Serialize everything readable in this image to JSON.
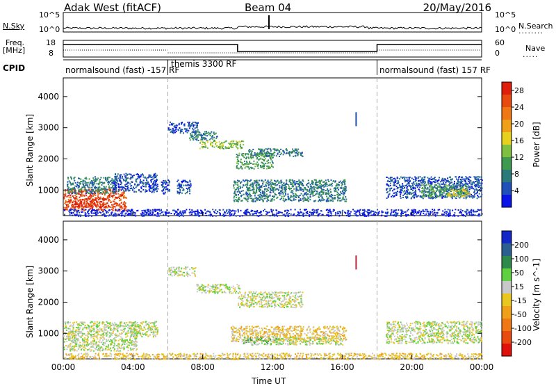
{
  "header": {
    "station": "Adak West (fitACF)",
    "beam": "Beam 04",
    "date": "20/May/2016"
  },
  "top_panels": {
    "nsky_label": "N.Sky",
    "nsearch_label": "N.Search",
    "nsky_ticks": [
      "10^5",
      "10^0"
    ],
    "nsearch_ticks": [
      "10^5",
      "10^0"
    ],
    "freq_label_line1": "Freq.",
    "freq_label_line2": "[MHz]",
    "freq_ticks": [
      "18",
      "8"
    ],
    "nave_label": "Nave",
    "nave_ticks": [
      "60",
      "0"
    ],
    "cpid_label": "CPID",
    "cpid_segments": [
      {
        "text": "normalsound (fast) -157 RF",
        "start_hour": 0,
        "end_hour": 6
      },
      {
        "text": "themis 3300 RF",
        "start_hour": 6,
        "end_hour": 18
      },
      {
        "text": "normalsound (fast) 157 RF",
        "start_hour": 18,
        "end_hour": 24
      }
    ]
  },
  "x_axis": {
    "label": "Time UT",
    "ticks": [
      "00:00",
      "04:00",
      "08:00",
      "12:00",
      "16:00",
      "20:00",
      "00:00"
    ]
  },
  "chart_data": [
    {
      "type": "heatmap",
      "name": "power",
      "ylabel": "Slant Range [km]",
      "ylim": [
        180,
        4600
      ],
      "yticks": [
        1000,
        2000,
        3000,
        4000
      ],
      "xlim": [
        0,
        24
      ],
      "colorbar": {
        "label": "Power [dB]",
        "ticks": [
          "4",
          "8",
          "12",
          "16",
          "20",
          "24",
          "28"
        ],
        "colors": [
          "#0a14e6",
          "#1f4fb8",
          "#2a7a7a",
          "#3e9a4e",
          "#7fc040",
          "#e6d21e",
          "#f0a018",
          "#f07814",
          "#e84a10",
          "#e01e0c"
        ]
      },
      "regions": [
        {
          "t0": 0.0,
          "t1": 3.6,
          "r0": 350,
          "r1": 1050,
          "level": 8
        },
        {
          "t0": 0.6,
          "t1": 2.6,
          "r0": 450,
          "r1": 750,
          "level": 9
        },
        {
          "t0": 0.2,
          "t1": 3.0,
          "r0": 900,
          "r1": 1450,
          "level": 2
        },
        {
          "t0": 2.8,
          "t1": 5.4,
          "r0": 950,
          "r1": 1550,
          "level": 1
        },
        {
          "t0": 5.6,
          "t1": 6.1,
          "r0": 900,
          "r1": 1350,
          "level": 1
        },
        {
          "t0": 6.0,
          "t1": 7.7,
          "r0": 2850,
          "r1": 3200,
          "level": 1
        },
        {
          "t0": 7.2,
          "t1": 8.8,
          "r0": 2600,
          "r1": 2900,
          "level": 2
        },
        {
          "t0": 7.8,
          "t1": 10.3,
          "r0": 2350,
          "r1": 2600,
          "level": 4
        },
        {
          "t0": 9.9,
          "t1": 12.0,
          "r0": 1700,
          "r1": 2200,
          "level": 3
        },
        {
          "t0": 10.6,
          "t1": 13.7,
          "r0": 2100,
          "r1": 2350,
          "level": 2
        },
        {
          "t0": 9.7,
          "t1": 16.2,
          "r0": 650,
          "r1": 1350,
          "level": 2
        },
        {
          "t0": 6.5,
          "t1": 7.3,
          "r0": 900,
          "r1": 1350,
          "level": 1
        },
        {
          "t0": 18.5,
          "t1": 24.0,
          "r0": 750,
          "r1": 1450,
          "level": 1
        },
        {
          "t0": 20.5,
          "t1": 23.2,
          "r0": 800,
          "r1": 1200,
          "level": 3
        },
        {
          "t0": 22.0,
          "t1": 23.3,
          "r0": 800,
          "r1": 1050,
          "level": 5
        },
        {
          "t0": 0.0,
          "t1": 24.0,
          "r0": 180,
          "r1": 400,
          "level": 0
        }
      ]
    },
    {
      "type": "heatmap",
      "name": "velocity",
      "ylabel": "Slant Range [km]",
      "ylim": [
        180,
        4600
      ],
      "yticks": [
        1000,
        2000,
        3000,
        4000
      ],
      "xlim": [
        0,
        24
      ],
      "colorbar": {
        "label": "Velocity [m s^-1]",
        "ticks": [
          "200",
          "100",
          "50",
          "15",
          "-15",
          "-50",
          "-100",
          "-200"
        ],
        "colors": [
          "#1428c8",
          "#2a5f8f",
          "#2e8a4a",
          "#5fd040",
          "#c8c8c8",
          "#e8c81e",
          "#f0a018",
          "#f07814",
          "#e84a10",
          "#e0100a"
        ]
      },
      "regions": [
        {
          "t0": 0.0,
          "t1": 4.2,
          "r0": 450,
          "r1": 1400,
          "level": 4
        },
        {
          "t0": 3.8,
          "t1": 5.4,
          "r0": 900,
          "r1": 1400,
          "level": 4
        },
        {
          "t0": 6.0,
          "t1": 7.6,
          "r0": 2850,
          "r1": 3150,
          "level": 4
        },
        {
          "t0": 7.6,
          "t1": 10.1,
          "r0": 2300,
          "r1": 2600,
          "level": 4
        },
        {
          "t0": 10.0,
          "t1": 13.7,
          "r0": 1850,
          "r1": 2350,
          "level": 4
        },
        {
          "t0": 9.6,
          "t1": 16.2,
          "r0": 750,
          "r1": 1250,
          "level": 5
        },
        {
          "t0": 10.3,
          "t1": 12.4,
          "r0": 650,
          "r1": 900,
          "level": 3
        },
        {
          "t0": 12.0,
          "t1": 16.0,
          "r0": 650,
          "r1": 900,
          "level": 4
        },
        {
          "t0": 18.5,
          "t1": 24.0,
          "r0": 700,
          "r1": 1400,
          "level": 4
        },
        {
          "t0": 0.0,
          "t1": 24.0,
          "r0": 180,
          "r1": 380,
          "level": 5
        }
      ]
    }
  ]
}
